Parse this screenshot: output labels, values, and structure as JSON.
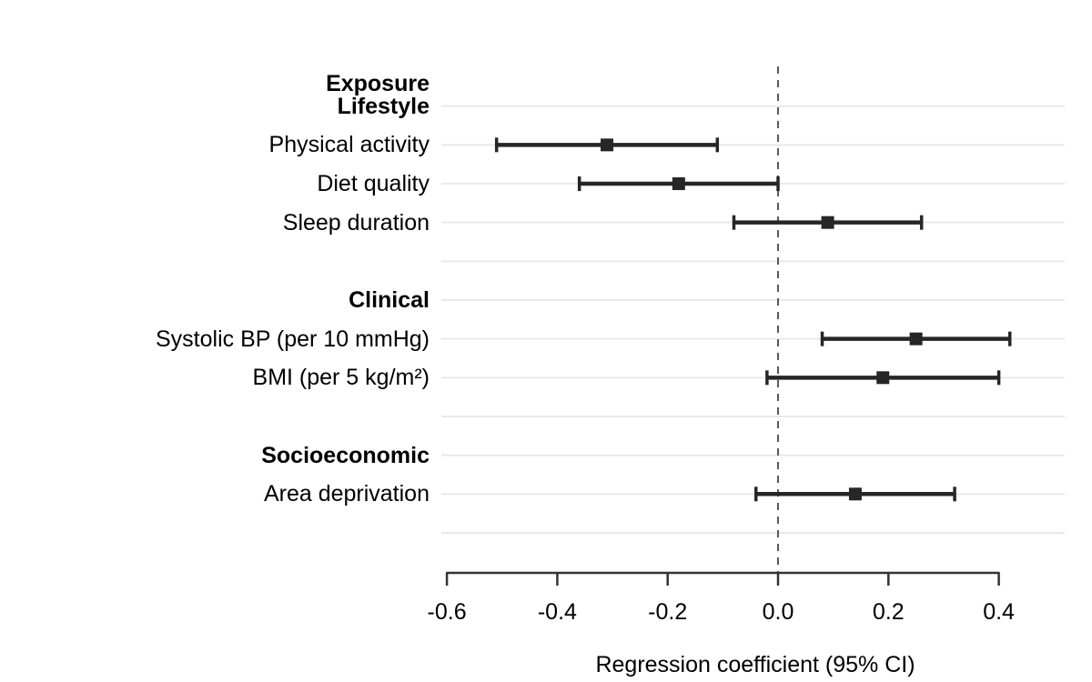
{
  "chart_data": {
    "type": "forest",
    "header": "Exposure",
    "xlabel": "Regression coefficient (95% CI)",
    "xlim": [
      -0.61,
      0.52
    ],
    "ticks": [
      -0.6,
      -0.4,
      -0.2,
      0.0,
      0.2,
      0.4
    ],
    "tick_labels": [
      "-0.6",
      "-0.4",
      "-0.2",
      "0.0",
      "0.2",
      "0.4"
    ],
    "zero_line": 0.0,
    "legend": "none",
    "grid": "horizontal-rows",
    "groups": [
      {
        "label": "Lifestyle",
        "items": [
          {
            "label": "Physical activity",
            "estimate": -0.31,
            "ci_low": -0.51,
            "ci_high": -0.11
          },
          {
            "label": "Diet quality",
            "estimate": -0.18,
            "ci_low": -0.36,
            "ci_high": 0.0
          },
          {
            "label": "Sleep duration",
            "estimate": 0.09,
            "ci_low": -0.08,
            "ci_high": 0.26
          }
        ]
      },
      {
        "label": "Clinical",
        "items": [
          {
            "label": "Systolic BP (per 10 mmHg)",
            "estimate": 0.25,
            "ci_low": 0.08,
            "ci_high": 0.42
          },
          {
            "label": "BMI (per 5 kg/m²)",
            "estimate": 0.19,
            "ci_low": -0.02,
            "ci_high": 0.4
          }
        ]
      },
      {
        "label": "Socioeconomic",
        "items": [
          {
            "label": "Area deprivation",
            "estimate": 0.14,
            "ci_low": -0.04,
            "ci_high": 0.32
          }
        ]
      }
    ],
    "colors": {
      "marker": "#262626",
      "axis": "#333333",
      "gridline": "#e9e9e9",
      "zero_line": "#595959",
      "text": "#000000",
      "background": "#ffffff"
    }
  }
}
